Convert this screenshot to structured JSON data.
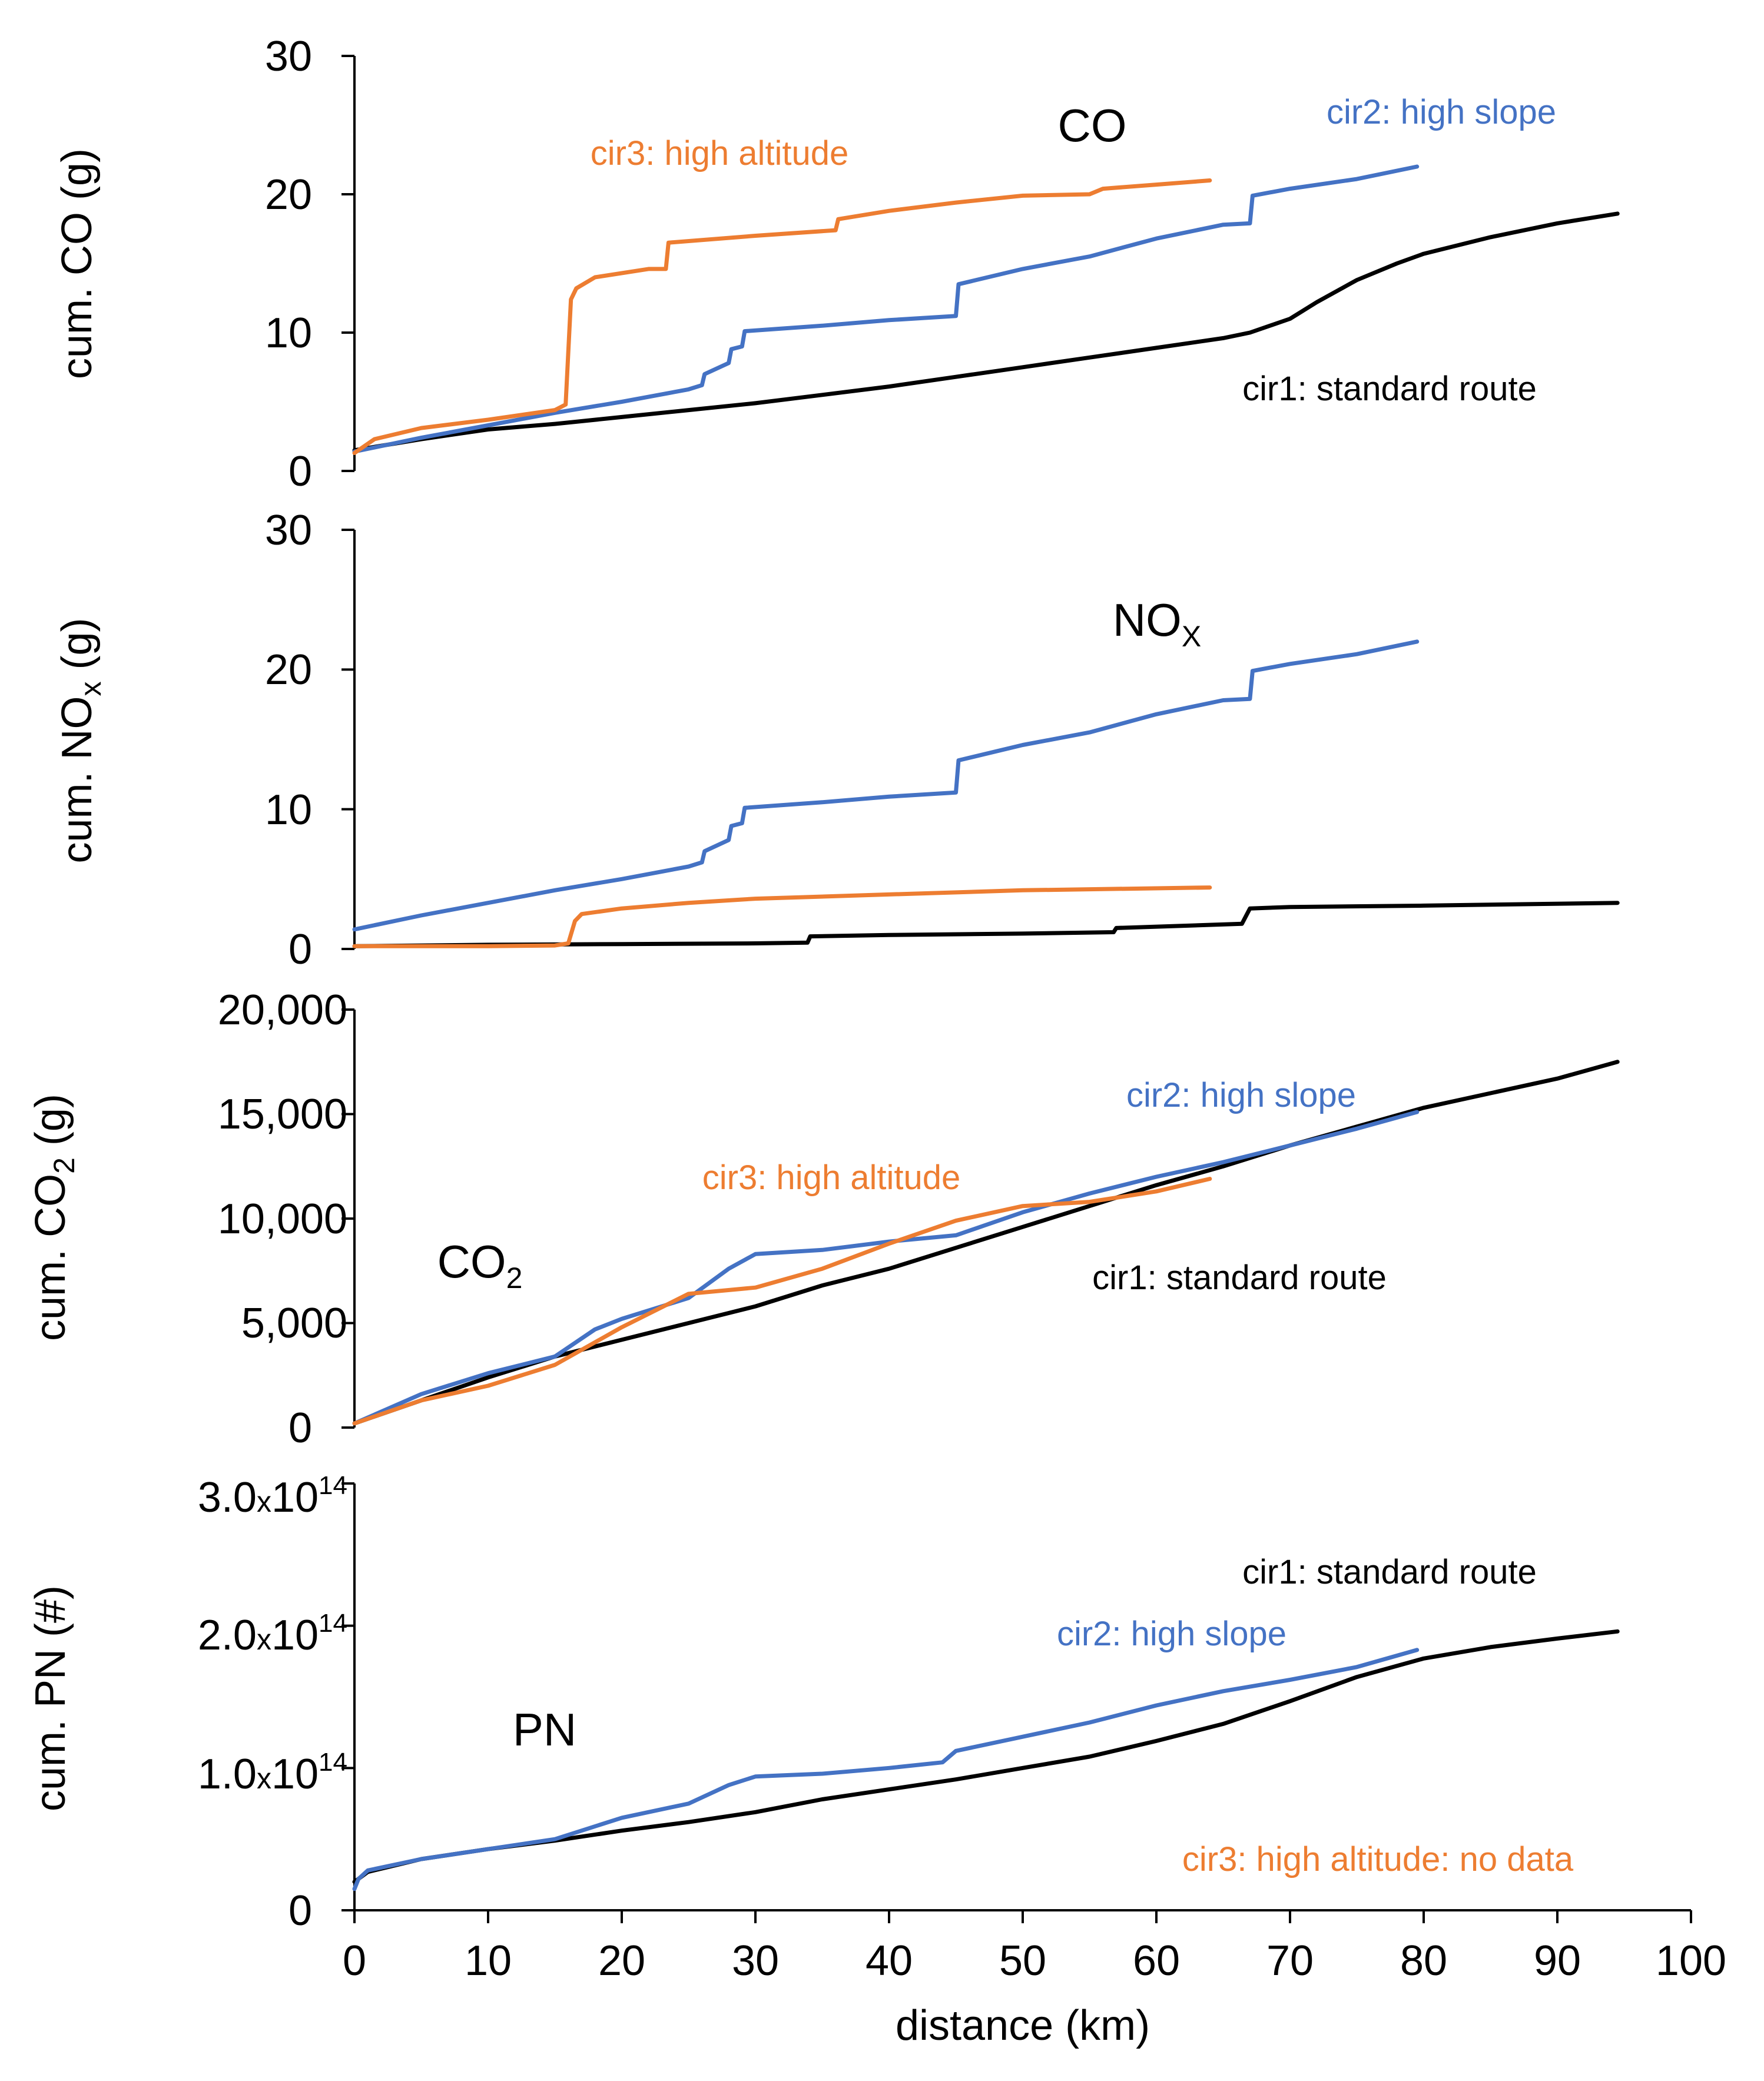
{
  "colors": {
    "cir1": "#000000",
    "cir2": "#4472C4",
    "cir3": "#ED7D31",
    "axis": "#000000",
    "background": "#FFFFFF"
  },
  "xaxis": {
    "label": "distance (km)",
    "ticks": [
      "0",
      "10",
      "20",
      "30",
      "40",
      "50",
      "60",
      "70",
      "80",
      "90",
      "100"
    ],
    "xlim": [
      0,
      100
    ]
  },
  "chart_data": [
    {
      "type": "line",
      "title": "CO",
      "ylabel": "cum. CO (g)",
      "yticks": [
        "0",
        "10",
        "20",
        "30"
      ],
      "ylim": [
        0,
        30
      ],
      "annotations": {
        "cir1": "cir1: standard route",
        "cir2": "cir2: high slope",
        "cir3": "cir3: high altitude"
      },
      "series": [
        {
          "name": "cir1: standard route",
          "color_key": "cir1",
          "x": [
            0,
            5,
            10,
            15,
            20,
            25,
            30,
            35,
            40,
            45,
            50,
            55,
            60,
            65,
            67,
            70,
            72,
            75,
            78,
            80,
            85,
            90,
            94.5
          ],
          "y": [
            1.5,
            2.3,
            3.0,
            3.4,
            3.9,
            4.4,
            4.9,
            5.5,
            6.1,
            6.8,
            7.5,
            8.2,
            8.9,
            9.6,
            10.0,
            11.0,
            12.2,
            13.8,
            15.0,
            15.7,
            16.9,
            17.9,
            18.6
          ]
        },
        {
          "name": "cir2: high slope",
          "color_key": "cir2",
          "x": [
            0,
            5,
            10,
            15,
            20,
            25,
            26,
            26.2,
            28,
            28.2,
            29,
            29.2,
            35,
            40,
            45,
            45.2,
            50,
            55,
            60,
            65,
            67,
            67.2,
            70,
            75,
            79.5
          ],
          "y": [
            1.4,
            2.4,
            3.3,
            4.2,
            5.0,
            5.9,
            6.2,
            7.0,
            7.8,
            8.8,
            9.0,
            10.1,
            10.5,
            10.9,
            11.2,
            13.5,
            14.6,
            15.5,
            16.8,
            17.8,
            17.9,
            19.9,
            20.4,
            21.1,
            22.0
          ]
        },
        {
          "name": "cir3: high altitude",
          "color_key": "cir3",
          "x": [
            0,
            1.5,
            5,
            10,
            15,
            15.8,
            16.2,
            16.6,
            18,
            22,
            23.3,
            23.5,
            30,
            36,
            36.2,
            40,
            45,
            50,
            55,
            56,
            60,
            64
          ],
          "y": [
            1.3,
            2.3,
            3.1,
            3.7,
            4.4,
            4.8,
            12.4,
            13.2,
            14.0,
            14.6,
            14.6,
            16.5,
            17.0,
            17.4,
            18.2,
            18.8,
            19.4,
            19.9,
            20.0,
            20.4,
            20.7,
            21.0
          ]
        }
      ]
    },
    {
      "type": "line",
      "title": "NOx",
      "ylabel": "cum. NOx (g)",
      "yticks": [
        "0",
        "10",
        "20",
        "30"
      ],
      "ylim": [
        0,
        30
      ],
      "series": [
        {
          "name": "cir1: standard route",
          "color_key": "cir1",
          "x": [
            0,
            10,
            20,
            30,
            33.9,
            34.1,
            40,
            50,
            56.8,
            57,
            66.4,
            67,
            70,
            80,
            94.5
          ],
          "y": [
            0.2,
            0.3,
            0.35,
            0.4,
            0.45,
            0.9,
            1.0,
            1.1,
            1.2,
            1.5,
            1.8,
            2.9,
            3.0,
            3.1,
            3.3
          ]
        },
        {
          "name": "cir2: high slope",
          "color_key": "cir2",
          "x": [
            0,
            5,
            10,
            15,
            20,
            25,
            26,
            26.2,
            28,
            28.2,
            29,
            29.2,
            35,
            40,
            45,
            45.2,
            50,
            55,
            60,
            65,
            67,
            67.2,
            70,
            75,
            79.5
          ],
          "y": [
            1.4,
            2.4,
            3.3,
            4.2,
            5.0,
            5.9,
            6.2,
            7.0,
            7.8,
            8.8,
            9.0,
            10.1,
            10.5,
            10.9,
            11.2,
            13.5,
            14.6,
            15.5,
            16.8,
            17.8,
            17.9,
            19.9,
            20.4,
            21.1,
            22.0
          ]
        },
        {
          "name": "cir3: high altitude",
          "color_key": "cir3",
          "x": [
            0,
            10,
            15,
            16,
            16.5,
            17,
            20,
            25,
            30,
            40,
            50,
            64
          ],
          "y": [
            0.2,
            0.2,
            0.25,
            0.4,
            2.0,
            2.5,
            2.9,
            3.3,
            3.6,
            3.9,
            4.2,
            4.4
          ]
        }
      ]
    },
    {
      "type": "line",
      "title": "CO2",
      "ylabel": "cum. CO2 (g)",
      "yticks": [
        "0",
        "5,000",
        "10,000",
        "15,000",
        "20,000"
      ],
      "ylim": [
        0,
        20000
      ],
      "annotations": {
        "cir1": "cir1: standard route",
        "cir2": "cir2: high slope",
        "cir3": "cir3: high altitude"
      },
      "series": [
        {
          "name": "cir1: standard route",
          "color_key": "cir1",
          "x": [
            0,
            5,
            10,
            15,
            20,
            25,
            30,
            35,
            40,
            45,
            50,
            55,
            60,
            65,
            70,
            75,
            80,
            85,
            90,
            94.5
          ],
          "y": [
            200,
            1300,
            2400,
            3400,
            4200,
            5000,
            5800,
            6800,
            7600,
            8600,
            9600,
            10600,
            11600,
            12500,
            13500,
            14400,
            15300,
            16000,
            16700,
            17500
          ]
        },
        {
          "name": "cir2: high slope",
          "color_key": "cir2",
          "x": [
            0,
            5,
            10,
            15,
            18,
            20,
            25,
            28,
            30,
            35,
            40,
            45,
            50,
            55,
            60,
            65,
            70,
            75,
            79.5
          ],
          "y": [
            200,
            1600,
            2600,
            3400,
            4700,
            5200,
            6200,
            7600,
            8300,
            8500,
            8900,
            9200,
            10300,
            11200,
            12000,
            12700,
            13500,
            14300,
            15100
          ]
        },
        {
          "name": "cir3: high altitude",
          "color_key": "cir3",
          "x": [
            0,
            5,
            10,
            15,
            20,
            25,
            30,
            35,
            40,
            45,
            50,
            55,
            60,
            64
          ],
          "y": [
            200,
            1300,
            2000,
            3000,
            4800,
            6400,
            6700,
            7600,
            8800,
            9900,
            10600,
            10800,
            11300,
            11900
          ]
        }
      ]
    },
    {
      "type": "line",
      "title": "PN",
      "ylabel": "cum. PN (#)",
      "yticks": [
        "0",
        "1.0x10^14",
        "2.0x10^14",
        "3.0x10^14"
      ],
      "ylim": [
        0,
        300000000000000.0
      ],
      "annotations": {
        "cir1": "cir1: standard route",
        "cir2": "cir2: high slope",
        "cir3": "cir3: high altitude: no data"
      },
      "series": [
        {
          "name": "cir1: standard route",
          "color_key": "cir1",
          "x": [
            0,
            1,
            5,
            10,
            15,
            20,
            25,
            30,
            35,
            40,
            45,
            50,
            55,
            60,
            65,
            70,
            75,
            80,
            85,
            90,
            94.5
          ],
          "y": [
            20000000000000.0,
            27000000000000.0,
            36000000000000.0,
            43000000000000.0,
            49000000000000.0,
            56000000000000.0,
            62000000000000.0,
            69000000000000.0,
            78000000000000.0,
            85000000000000.0,
            92000000000000.0,
            100000000000000.0,
            108000000000000.0,
            119000000000000.0,
            131000000000000.0,
            147000000000000.0,
            164000000000000.0,
            177000000000000.0,
            185000000000000.0,
            191000000000000.0,
            196000000000000.0
          ]
        },
        {
          "name": "cir2: high slope",
          "color_key": "cir2",
          "x": [
            0,
            0.3,
            1,
            5,
            10,
            15,
            20,
            25,
            28,
            30,
            35,
            40,
            44,
            45,
            50,
            55,
            60,
            65,
            70,
            75,
            79.5
          ],
          "y": [
            15000000000000.0,
            22000000000000.0,
            28000000000000.0,
            36000000000000.0,
            43000000000000.0,
            50000000000000.0,
            65000000000000.0,
            75000000000000.0,
            88000000000000.0,
            94000000000000.0,
            96000000000000.0,
            100000000000000.0,
            104000000000000.0,
            112000000000000.0,
            122000000000000.0,
            132000000000000.0,
            144000000000000.0,
            154000000000000.0,
            162000000000000.0,
            171000000000000.0,
            183000000000000.0
          ]
        }
      ]
    }
  ]
}
